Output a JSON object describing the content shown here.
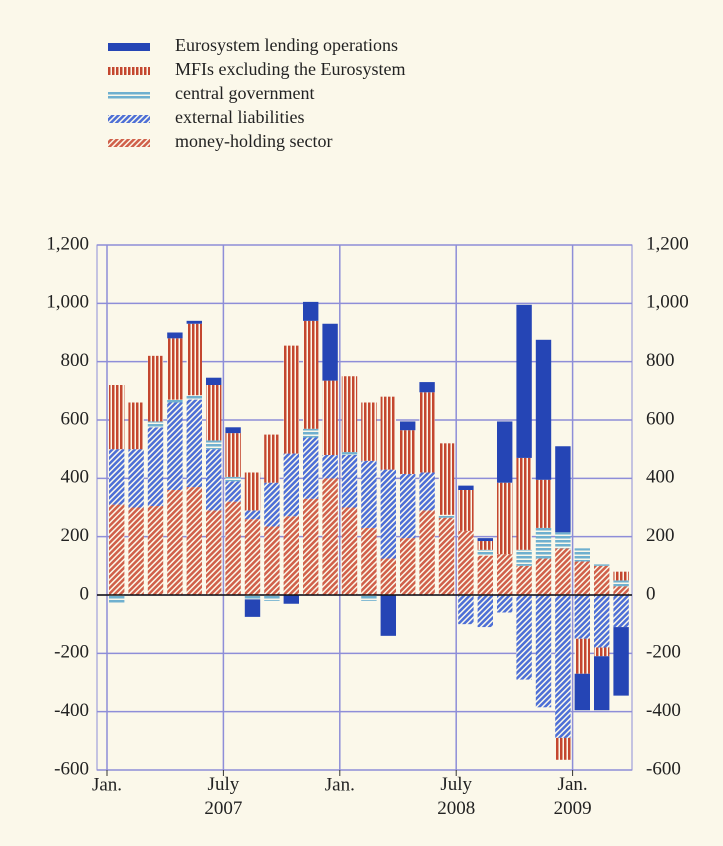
{
  "chart_data": {
    "type": "bar",
    "stacked": true,
    "categories": [
      "Jan.",
      null,
      null,
      null,
      null,
      null,
      "July 2007",
      null,
      null,
      null,
      null,
      null,
      "Jan.",
      null,
      null,
      null,
      null,
      null,
      "July 2008",
      null,
      null,
      null,
      null,
      null,
      "Jan. 2009",
      null,
      null
    ],
    "series": [
      {
        "name": "Eurosystem lending operations",
        "color": "#2545b5",
        "pattern": "solid",
        "values": [
          0,
          0,
          0,
          20,
          10,
          25,
          20,
          -60,
          0,
          -30,
          65,
          195,
          0,
          0,
          -140,
          30,
          35,
          0,
          15,
          10,
          210,
          525,
          480,
          295,
          -125,
          -185,
          -235
        ]
      },
      {
        "name": "MFIs excluding the Eurosystem",
        "color": "#c4472f",
        "pattern": "vertical",
        "values": [
          220,
          160,
          225,
          210,
          245,
          190,
          150,
          130,
          165,
          370,
          370,
          255,
          260,
          200,
          250,
          150,
          275,
          245,
          140,
          30,
          245,
          315,
          165,
          -75,
          -120,
          -30,
          30
        ]
      },
      {
        "name": "central government",
        "color": "#6fb0cf",
        "pattern": "horizontal",
        "values": [
          -30,
          0,
          20,
          10,
          15,
          30,
          15,
          -15,
          -20,
          0,
          30,
          0,
          10,
          -20,
          0,
          0,
          0,
          10,
          0,
          20,
          0,
          55,
          105,
          55,
          45,
          5,
          20
        ]
      },
      {
        "name": "external liabilities",
        "color": "#4d6fd6",
        "pattern": "diagonal",
        "values": [
          190,
          200,
          270,
          300,
          300,
          210,
          70,
          30,
          150,
          215,
          210,
          80,
          180,
          230,
          305,
          220,
          130,
          0,
          -100,
          -110,
          -60,
          -290,
          -385,
          -490,
          -150,
          -180,
          -110
        ]
      },
      {
        "name": "money-holding sector",
        "color": "#d0604a",
        "pattern": "diagonal",
        "values": [
          310,
          300,
          305,
          360,
          370,
          290,
          320,
          260,
          235,
          270,
          330,
          400,
          300,
          230,
          125,
          195,
          290,
          265,
          220,
          135,
          140,
          100,
          125,
          160,
          115,
          100,
          30
        ]
      }
    ],
    "ylim": [
      -600,
      1200
    ],
    "yticks": [
      -600,
      -400,
      -200,
      0,
      200,
      400,
      600,
      800,
      {
        "value": 1000,
        "label": "1,000"
      },
      {
        "value": 1200,
        "label": "1,200"
      }
    ],
    "grid": true,
    "legend": "top-left",
    "right_axis": true
  }
}
